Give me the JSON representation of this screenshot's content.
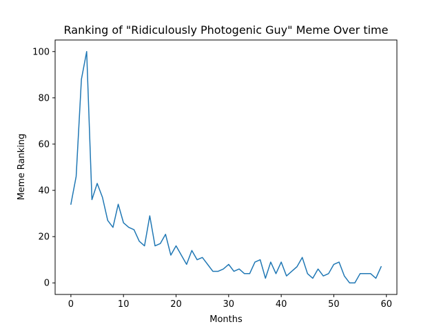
{
  "chart_data": {
    "type": "line",
    "title": "Ranking of \"Ridiculously Photogenic Guy\" Meme Over time",
    "xlabel": "Months",
    "ylabel": "Meme Ranking",
    "xlim": [
      -3,
      62
    ],
    "ylim": [
      -5,
      105
    ],
    "xticks": [
      0,
      10,
      20,
      30,
      40,
      50,
      60
    ],
    "yticks": [
      0,
      20,
      40,
      60,
      80,
      100
    ],
    "grid": false,
    "series": [
      {
        "name": "Ranking",
        "color": "#1f77b4",
        "x": [
          0,
          1,
          2,
          3,
          4,
          5,
          6,
          7,
          8,
          9,
          10,
          11,
          12,
          13,
          14,
          15,
          16,
          17,
          18,
          19,
          20,
          21,
          22,
          23,
          24,
          25,
          26,
          27,
          28,
          29,
          30,
          31,
          32,
          33,
          34,
          35,
          36,
          37,
          38,
          39,
          40,
          41,
          42,
          43,
          44,
          45,
          46,
          47,
          48,
          49,
          50,
          51,
          52,
          53,
          54,
          55,
          56,
          57,
          58,
          59
        ],
        "values": [
          34,
          46,
          88,
          100,
          36,
          43,
          37,
          27,
          24,
          34,
          26,
          24,
          23,
          18,
          16,
          29,
          16,
          17,
          21,
          12,
          16,
          12,
          8,
          14,
          10,
          11,
          8,
          5,
          5,
          6,
          8,
          5,
          6,
          4,
          4,
          9,
          10,
          2,
          9,
          4,
          9,
          3,
          5,
          7,
          11,
          4,
          2,
          6,
          3,
          4,
          8,
          9,
          3,
          0,
          0,
          4,
          4,
          4,
          2,
          7
        ]
      }
    ]
  }
}
